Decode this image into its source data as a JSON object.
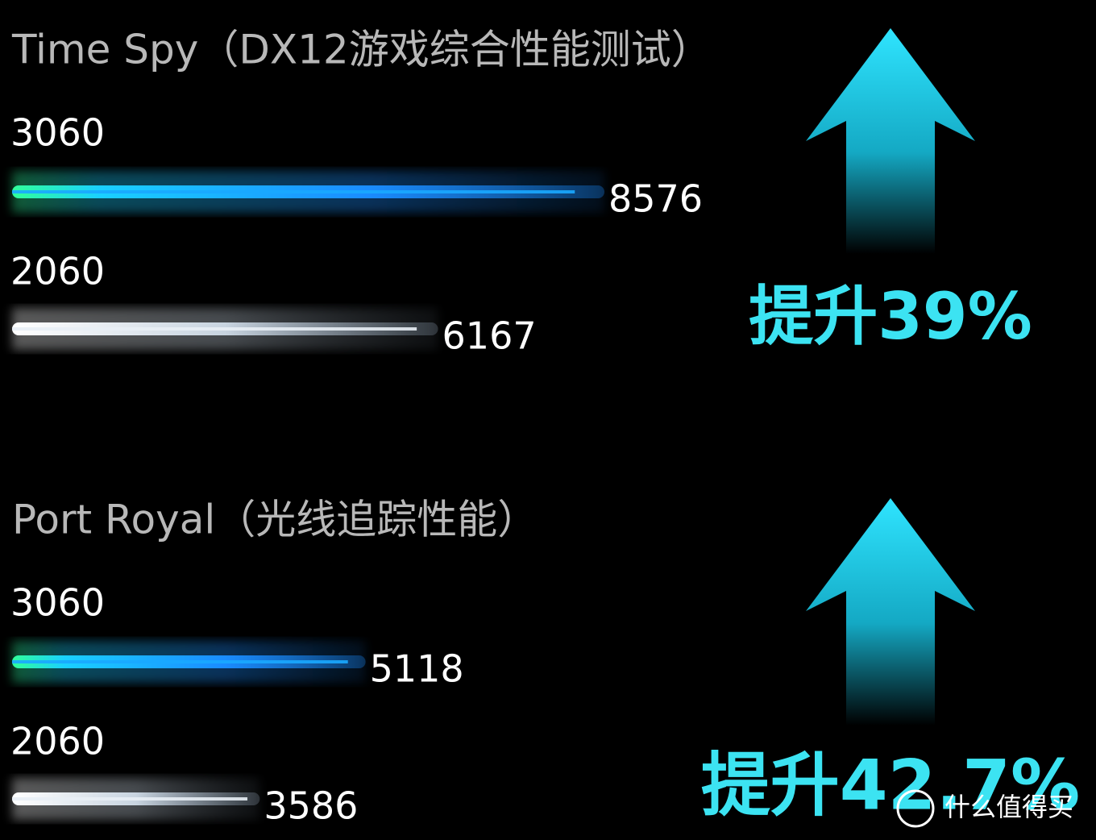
{
  "chart_data": [
    {
      "type": "bar",
      "title": "Time Spy（DX12游戏综合性能测试）",
      "categories": [
        "3060",
        "2060"
      ],
      "values": [
        8576,
        6167
      ],
      "colors": [
        "#1aa8ff",
        "#e8eef5"
      ],
      "annotation": "提升39%"
    },
    {
      "type": "bar",
      "title": "Port Royal（光线追踪性能）",
      "categories": [
        "3060",
        "2060"
      ],
      "values": [
        5118,
        3586
      ],
      "colors": [
        "#1aa8ff",
        "#e8eef5"
      ],
      "annotation": "提升42.7%"
    }
  ],
  "watermark": "什么值得买"
}
